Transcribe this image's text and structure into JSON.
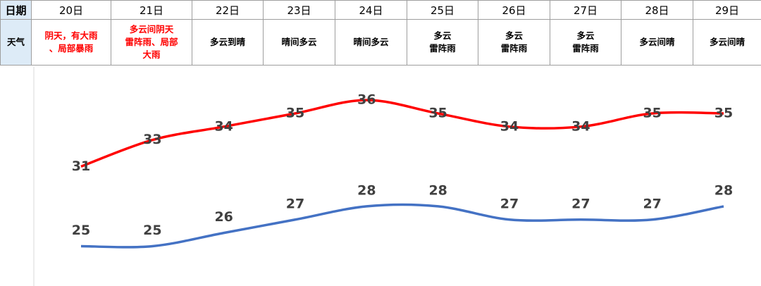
{
  "table": {
    "header": {
      "label": "日期",
      "dates": [
        "20日",
        "21日",
        "22日",
        "23日",
        "24日",
        "25日",
        "26日",
        "27日",
        "28日",
        "29日"
      ]
    },
    "weather": {
      "label": "天气",
      "cells": [
        {
          "text": "阴天，有大雨\n、局部暴雨",
          "color": "#ff0000"
        },
        {
          "text": "多云间阴天\n雷阵雨、局部\n大雨",
          "color": "#ff0000"
        },
        {
          "text": "多云到晴"
        },
        {
          "text": "晴间多云"
        },
        {
          "text": "晴间多云"
        },
        {
          "text": "多云\n雷阵雨"
        },
        {
          "text": "多云\n雷阵雨"
        },
        {
          "text": "多云\n雷阵雨"
        },
        {
          "text": "多云间晴"
        },
        {
          "text": "多云间晴"
        }
      ]
    }
  },
  "chart_data": {
    "type": "line",
    "series": [
      {
        "color": "#ff0000",
        "values": [
          31,
          33,
          34,
          35,
          36,
          35,
          34,
          34,
          35,
          35
        ]
      },
      {
        "color": "#4472c4",
        "values": [
          25,
          25,
          26,
          27,
          28,
          28,
          27,
          27,
          27,
          28
        ]
      }
    ],
    "ylim": [
      22,
      38.5
    ]
  }
}
